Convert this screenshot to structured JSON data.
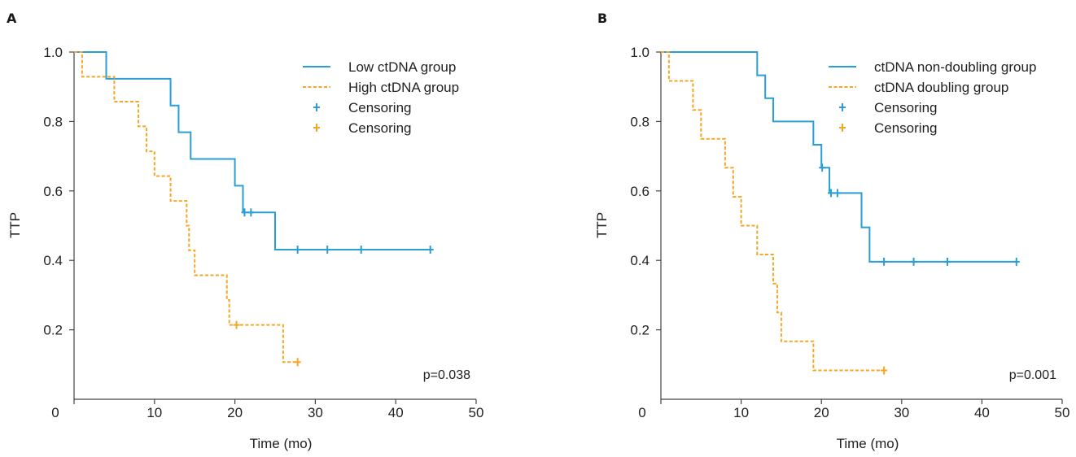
{
  "chart_data": [
    {
      "type": "line",
      "panel": "A",
      "xlabel": "Time (mo)",
      "ylabel": "TTP",
      "xlim": [
        0,
        50
      ],
      "ylim": [
        0,
        1.0
      ],
      "x_ticks": [
        "0",
        "10",
        "20",
        "30",
        "40",
        "50"
      ],
      "y_ticks": [
        "0.2",
        "0.4",
        "0.6",
        "0.8",
        "1.0"
      ],
      "annotation": "p=0.038",
      "legend_position": "top-right",
      "series": [
        {
          "name": "Low ctDNA group",
          "color": "#2a9fd6",
          "dash": "solid",
          "steps": [
            [
              0,
              1.0
            ],
            [
              4,
              0.923
            ],
            [
              12,
              0.846
            ],
            [
              13,
              0.769
            ],
            [
              14.5,
              0.692
            ],
            [
              20,
              0.615
            ],
            [
              21,
              0.538
            ],
            [
              25,
              0.431
            ],
            [
              44.3,
              0.431
            ]
          ],
          "censor": [
            [
              21.2,
              0.538
            ],
            [
              22,
              0.538
            ],
            [
              27.8,
              0.431
            ],
            [
              31.5,
              0.431
            ],
            [
              35.7,
              0.431
            ],
            [
              44.3,
              0.431
            ]
          ]
        },
        {
          "name": "High ctDNA group",
          "color": "#f5a623",
          "dash": "dashed",
          "steps": [
            [
              0,
              1.0
            ],
            [
              1,
              0.929
            ],
            [
              5,
              0.857
            ],
            [
              8,
              0.786
            ],
            [
              9,
              0.714
            ],
            [
              10,
              0.643
            ],
            [
              12,
              0.571
            ],
            [
              14,
              0.5
            ],
            [
              14.3,
              0.429
            ],
            [
              15,
              0.357
            ],
            [
              19,
              0.286
            ],
            [
              19.3,
              0.214
            ],
            [
              26,
              0.107
            ],
            [
              27.8,
              0.107
            ]
          ],
          "censor": [
            [
              20.2,
              0.214
            ],
            [
              27.8,
              0.107
            ]
          ]
        }
      ],
      "legend": [
        "Low ctDNA group",
        "High ctDNA group",
        "Censoring",
        "Censoring"
      ]
    },
    {
      "type": "line",
      "panel": "B",
      "xlabel": "Time (mo)",
      "ylabel": "TTP",
      "xlim": [
        0,
        50
      ],
      "ylim": [
        0,
        1.0
      ],
      "x_ticks": [
        "0",
        "10",
        "20",
        "30",
        "40",
        "50"
      ],
      "y_ticks": [
        "0.2",
        "0.4",
        "0.6",
        "0.8",
        "1.0"
      ],
      "annotation": "p=0.001",
      "legend_position": "top-right",
      "series": [
        {
          "name": "ctDNA non-doubling group",
          "color": "#2a9fd6",
          "dash": "solid",
          "steps": [
            [
              0,
              1.0
            ],
            [
              12,
              0.933
            ],
            [
              13,
              0.867
            ],
            [
              14,
              0.8
            ],
            [
              19,
              0.733
            ],
            [
              20,
              0.667
            ],
            [
              21,
              0.594
            ],
            [
              25,
              0.495
            ],
            [
              26,
              0.396
            ],
            [
              44.3,
              0.396
            ]
          ],
          "censor": [
            [
              20.1,
              0.667
            ],
            [
              21.2,
              0.594
            ],
            [
              22,
              0.594
            ],
            [
              27.8,
              0.396
            ],
            [
              31.5,
              0.396
            ],
            [
              35.7,
              0.396
            ],
            [
              44.3,
              0.396
            ]
          ]
        },
        {
          "name": "ctDNA doubling group",
          "color": "#f5a623",
          "dash": "dashed",
          "steps": [
            [
              0,
              1.0
            ],
            [
              1,
              0.917
            ],
            [
              4,
              0.833
            ],
            [
              5,
              0.75
            ],
            [
              8,
              0.667
            ],
            [
              9,
              0.583
            ],
            [
              10,
              0.5
            ],
            [
              12,
              0.417
            ],
            [
              14,
              0.333
            ],
            [
              14.5,
              0.25
            ],
            [
              15,
              0.167
            ],
            [
              19,
              0.083
            ],
            [
              27.8,
              0.083
            ]
          ],
          "censor": [
            [
              27.8,
              0.083
            ]
          ]
        }
      ],
      "legend": [
        "ctDNA non-doubling group",
        "ctDNA doubling group",
        "Censoring",
        "Censoring"
      ]
    }
  ]
}
